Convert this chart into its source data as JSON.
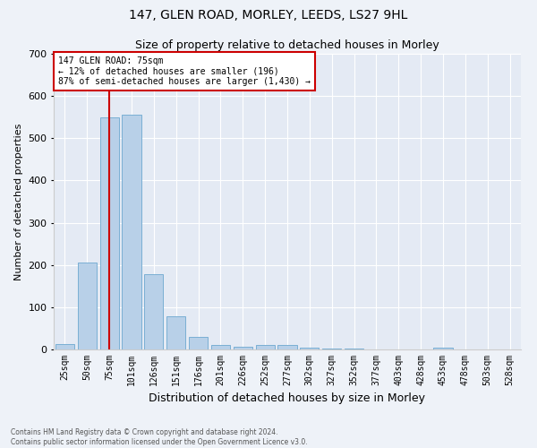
{
  "title": "147, GLEN ROAD, MORLEY, LEEDS, LS27 9HL",
  "subtitle": "Size of property relative to detached houses in Morley",
  "xlabel": "Distribution of detached houses by size in Morley",
  "ylabel": "Number of detached properties",
  "categories": [
    "25sqm",
    "50sqm",
    "75sqm",
    "101sqm",
    "126sqm",
    "151sqm",
    "176sqm",
    "201sqm",
    "226sqm",
    "252sqm",
    "277sqm",
    "302sqm",
    "327sqm",
    "352sqm",
    "377sqm",
    "403sqm",
    "428sqm",
    "453sqm",
    "478sqm",
    "503sqm",
    "528sqm"
  ],
  "values": [
    12,
    205,
    550,
    555,
    178,
    78,
    30,
    10,
    7,
    10,
    10,
    5,
    3,
    3,
    0,
    0,
    0,
    5,
    0,
    0,
    0
  ],
  "bar_color": "#b8d0e8",
  "bar_edge_color": "#7aafd4",
  "highlight_label": "147 GLEN ROAD: 75sqm",
  "annotation_line1": "← 12% of detached houses are smaller (196)",
  "annotation_line2": "87% of semi-detached houses are larger (1,430) →",
  "vline_color": "#cc0000",
  "box_color": "#cc0000",
  "ylim": [
    0,
    700
  ],
  "yticks": [
    0,
    100,
    200,
    300,
    400,
    500,
    600,
    700
  ],
  "title_fontsize": 10,
  "subtitle_fontsize": 9,
  "xlabel_fontsize": 9,
  "ylabel_fontsize": 8,
  "tick_fontsize": 7,
  "footer_line1": "Contains HM Land Registry data © Crown copyright and database right 2024.",
  "footer_line2": "Contains public sector information licensed under the Open Government Licence v3.0.",
  "background_color": "#eef2f8",
  "plot_bg_color": "#e4eaf4"
}
